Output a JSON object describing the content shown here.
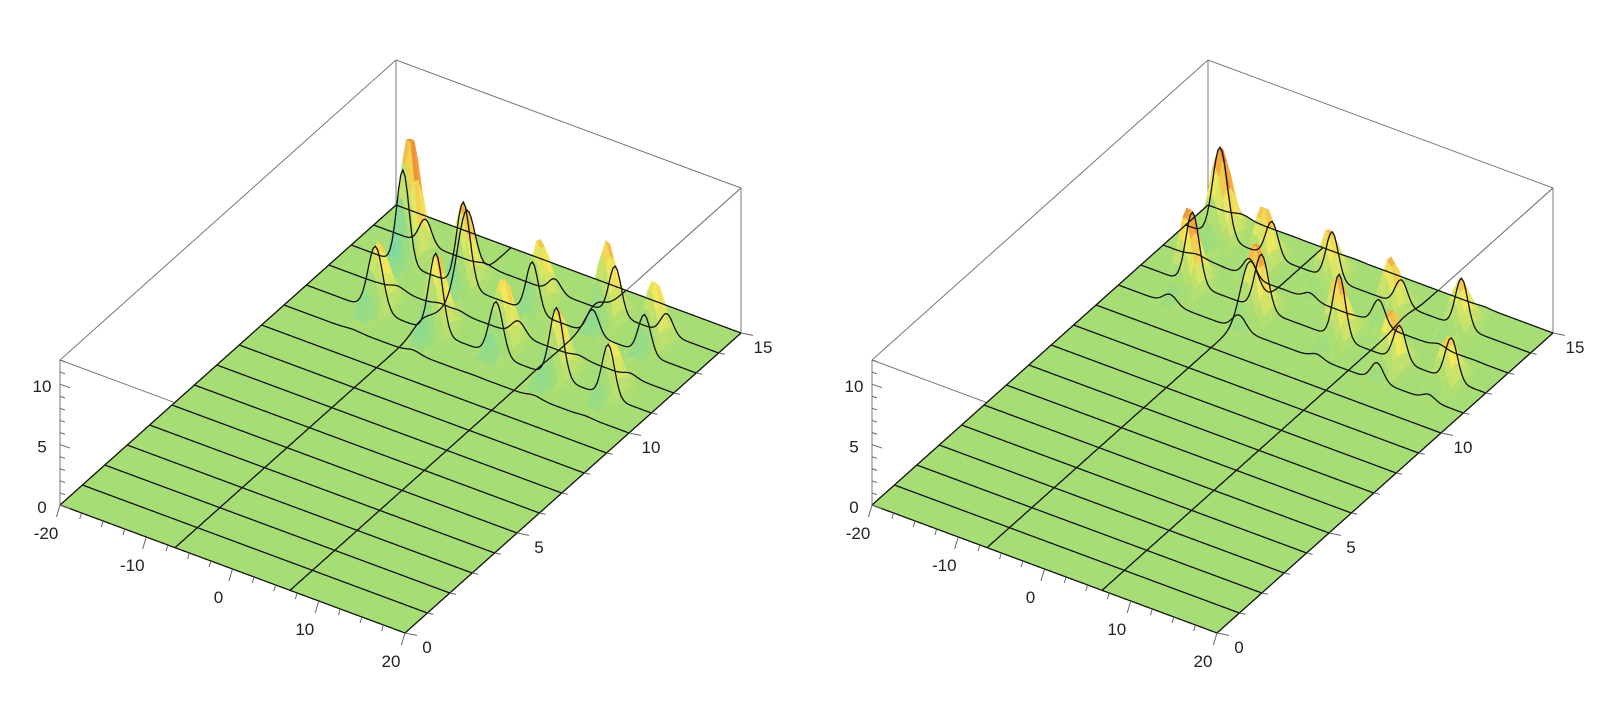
{
  "chart_data": [
    {
      "type": "surface3d",
      "title": "",
      "x_axis": {
        "range": [
          -20,
          20
        ],
        "ticks": [
          "-20",
          "-10",
          "0",
          "10",
          "20"
        ]
      },
      "y_axis": {
        "range": [
          0,
          15
        ],
        "ticks": [
          "0",
          "5",
          "10",
          "15"
        ]
      },
      "z_axis": {
        "range": [
          0,
          12
        ],
        "ticks": [
          "0",
          "5",
          "10"
        ]
      },
      "colormap": [
        "#1e3cff",
        "#3fd6e6",
        "#a6dd75",
        "#f3ea5c",
        "#f3a33e",
        "#e8732b"
      ],
      "mesh": true,
      "peaks": [
        {
          "x": -14,
          "y": 13.3,
          "z": 10.5,
          "w": 1.0
        },
        {
          "x": -7,
          "y": 13.0,
          "z": 7.0,
          "w": 1.1
        },
        {
          "x": 1,
          "y": 13.3,
          "z": 5.6,
          "w": 1.0
        },
        {
          "x": 8,
          "y": 13.6,
          "z": 6.8,
          "w": 1.0
        },
        {
          "x": 14,
          "y": 13.4,
          "z": 5.5,
          "w": 1.0
        },
        {
          "x": -12,
          "y": 11.1,
          "z": 5.5,
          "w": 1.2
        },
        {
          "x": -5,
          "y": 11.0,
          "z": 6.6,
          "w": 1.1
        },
        {
          "x": 2,
          "y": 11.3,
          "z": 6.0,
          "w": 1.1
        },
        {
          "x": 9,
          "y": 11.0,
          "z": 5.8,
          "w": 1.1
        },
        {
          "x": 15,
          "y": 11.1,
          "z": 4.5,
          "w": 1.0
        }
      ]
    },
    {
      "type": "surface3d",
      "title": "",
      "x_axis": {
        "range": [
          -20,
          20
        ],
        "ticks": [
          "-20",
          "-10",
          "0",
          "10",
          "20"
        ]
      },
      "y_axis": {
        "range": [
          0,
          15
        ],
        "ticks": [
          "0",
          "5",
          "10",
          "15"
        ]
      },
      "z_axis": {
        "range": [
          0,
          12
        ],
        "ticks": [
          "0",
          "5",
          "10"
        ]
      },
      "colormap": [
        "#1e3cff",
        "#3fd6e6",
        "#a6dd75",
        "#f3ea5c",
        "#f3a33e",
        "#e8732b"
      ],
      "mesh": true,
      "peaks": [
        {
          "x": -16,
          "y": 14.0,
          "z": 7.5,
          "w": 1.2
        },
        {
          "x": -10,
          "y": 13.6,
          "z": 5.0,
          "w": 1.0
        },
        {
          "x": -3,
          "y": 13.8,
          "z": 4.5,
          "w": 1.0
        },
        {
          "x": 5,
          "y": 13.5,
          "z": 4.8,
          "w": 1.0
        },
        {
          "x": 12,
          "y": 13.9,
          "z": 4.2,
          "w": 1.0
        },
        {
          "x": -14,
          "y": 11.8,
          "z": 6.8,
          "w": 1.1
        },
        {
          "x": -6,
          "y": 11.7,
          "z": 6.2,
          "w": 1.1
        },
        {
          "x": 3,
          "y": 11.9,
          "z": 5.5,
          "w": 1.0
        },
        {
          "x": 10,
          "y": 11.6,
          "z": 5.0,
          "w": 1.0
        },
        {
          "x": 16,
          "y": 11.8,
          "z": 4.0,
          "w": 1.0
        }
      ]
    }
  ]
}
